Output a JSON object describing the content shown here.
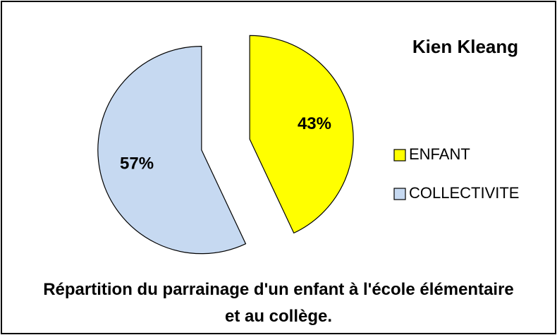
{
  "chart_data": {
    "type": "pie",
    "title": "Kien Kleang",
    "caption": "Répartition du parrainage d'un enfant à l'école élémentaire et au collège.",
    "categories": [
      "ENFANT",
      "COLLECTIVITE"
    ],
    "values": [
      43,
      57
    ],
    "value_labels": [
      "43%",
      "57%"
    ],
    "colors": [
      "#ffff00",
      "#c6d9f1"
    ],
    "legend": "right"
  }
}
